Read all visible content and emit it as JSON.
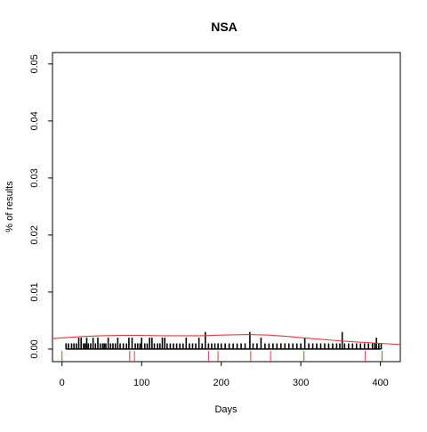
{
  "chart_data": {
    "type": "bar",
    "title": "NSA",
    "xlabel": "Days",
    "ylabel": "% of results",
    "xlim": [
      -12,
      425
    ],
    "ylim": [
      -0.0022,
      0.052
    ],
    "xticks": [
      0,
      100,
      200,
      300,
      400
    ],
    "yticks": [
      0.0,
      0.01,
      0.02,
      0.03,
      0.04,
      0.05
    ],
    "xtick_labels": [
      "0",
      "100",
      "200",
      "300",
      "400"
    ],
    "ytick_labels": [
      "0.00",
      "0.01",
      "0.02",
      "0.03",
      "0.04",
      "0.05"
    ],
    "grid": false,
    "legend": "none",
    "colors": {
      "bars": "#000000",
      "trend": "#e83a3a",
      "rug": "#e83a3a",
      "axis": "#000000"
    },
    "series": [
      {
        "kind": "spikes",
        "x": [
          5,
          8,
          12,
          15,
          18,
          21,
          24,
          27,
          29,
          31,
          33,
          36,
          39,
          42,
          45,
          48,
          51,
          53,
          55,
          58,
          61,
          64,
          67,
          70,
          73,
          77,
          81,
          84,
          88,
          92,
          95,
          98,
          100,
          104,
          107,
          110,
          113,
          116,
          120,
          123,
          126,
          129,
          132,
          136,
          140,
          144,
          148,
          152,
          156,
          160,
          164,
          168,
          172,
          176,
          180,
          184,
          188,
          192,
          196,
          200,
          205,
          210,
          215,
          220,
          225,
          230,
          236,
          240,
          245,
          250,
          255,
          260,
          265,
          270,
          275,
          280,
          285,
          290,
          295,
          300,
          305,
          310,
          315,
          320,
          325,
          330,
          335,
          340,
          345,
          349,
          352,
          355,
          360,
          365,
          370,
          375,
          380,
          385,
          390,
          393,
          395,
          398,
          401
        ],
        "y": [
          0.001,
          0.001,
          0.001,
          0.001,
          0.001,
          0.002,
          0.002,
          0.001,
          0.001,
          0.002,
          0.001,
          0.001,
          0.002,
          0.001,
          0.002,
          0.001,
          0.001,
          0.001,
          0.001,
          0.002,
          0.001,
          0.001,
          0.001,
          0.002,
          0.001,
          0.001,
          0.001,
          0.002,
          0.002,
          0.001,
          0.001,
          0.001,
          0.002,
          0.001,
          0.001,
          0.002,
          0.002,
          0.001,
          0.001,
          0.001,
          0.002,
          0.002,
          0.001,
          0.001,
          0.001,
          0.001,
          0.001,
          0.001,
          0.002,
          0.001,
          0.001,
          0.001,
          0.002,
          0.001,
          0.003,
          0.001,
          0.001,
          0.001,
          0.001,
          0.001,
          0.001,
          0.001,
          0.001,
          0.001,
          0.001,
          0.001,
          0.003,
          0.001,
          0.001,
          0.002,
          0.001,
          0.001,
          0.001,
          0.001,
          0.001,
          0.001,
          0.001,
          0.001,
          0.001,
          0.001,
          0.002,
          0.001,
          0.001,
          0.001,
          0.001,
          0.001,
          0.001,
          0.001,
          0.001,
          0.001,
          0.003,
          0.001,
          0.001,
          0.001,
          0.001,
          0.001,
          0.001,
          0.001,
          0.001,
          0.001,
          0.002,
          0.001,
          0.001
        ]
      },
      {
        "kind": "trend",
        "x": [
          -12,
          25,
          50,
          75,
          100,
          125,
          150,
          175,
          200,
          235,
          260,
          285,
          310,
          340,
          370,
          400,
          425
        ],
        "y": [
          0.00185,
          0.0022,
          0.00235,
          0.0024,
          0.0024,
          0.00235,
          0.00235,
          0.00235,
          0.00245,
          0.00255,
          0.00245,
          0.0022,
          0.0019,
          0.00155,
          0.00125,
          0.001,
          0.0008
        ]
      },
      {
        "kind": "rug",
        "x": [
          0,
          85,
          91,
          184,
          196,
          237,
          262,
          304,
          381,
          402
        ]
      }
    ]
  }
}
